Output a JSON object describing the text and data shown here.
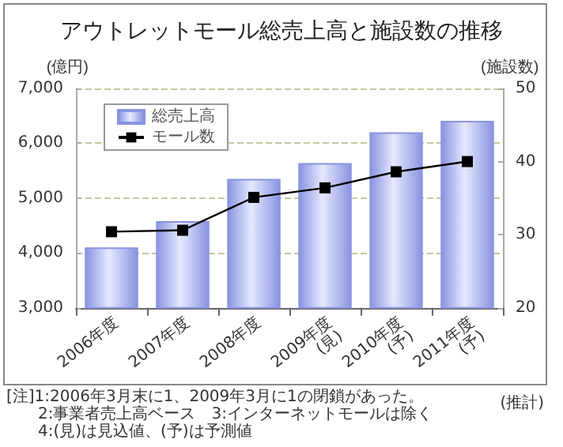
{
  "chart_data": {
    "type": "bar",
    "title": "アウトレットモール総売上高と施設数の推移",
    "ylabel": "(億円)",
    "y2label": "(施設数)",
    "categories": [
      "2006年度",
      "2007年度",
      "2008年度",
      "2009年度\n(見)",
      "2010年度\n(予)",
      "2011年度\n(予)"
    ],
    "series": [
      {
        "name": "総売上高",
        "color": "#8a94e0",
        "values": [
          4100,
          4580,
          5350,
          5640,
          6200,
          6410
        ]
      },
      {
        "name": "モール数",
        "type": "line",
        "axis": "y2",
        "color": "#000000",
        "marker": "square",
        "values": [
          30.4,
          30.6,
          35.1,
          36.4,
          38.6,
          40
        ]
      }
    ],
    "ylim": [
      3000,
      7000
    ],
    "yticks": [
      {
        "value": 3000,
        "label": "3,000"
      },
      {
        "value": 4000,
        "label": "4,000"
      },
      {
        "value": 5000,
        "label": "5,000"
      },
      {
        "value": 6000,
        "label": "6,000"
      },
      {
        "value": 7000,
        "label": "7,000"
      }
    ],
    "y2lim": [
      20,
      50
    ],
    "y2ticks": [
      20,
      30,
      40,
      50
    ],
    "grid": "y",
    "legend": "top left",
    "annotations": [
      "[注]1:2006年3月末に1、2009年3月に1の閉鎖があった。",
      "2:事業者売上高ベース　3:インターネットモールは除く",
      "4:(見)は見込値、(予)は予測値",
      "(推計)"
    ]
  }
}
